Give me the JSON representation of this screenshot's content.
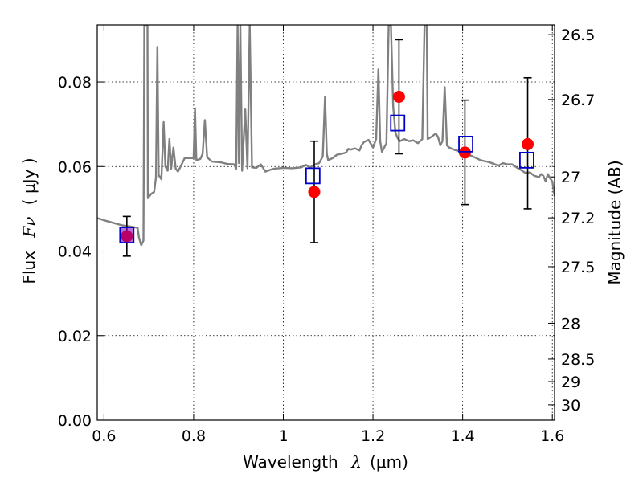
{
  "chart_data": {
    "type": "scatter",
    "xlabel": "Wavelength",
    "xlabel_symbol": "λ",
    "xlabel_unit": "(μm)",
    "ylabel": "Flux",
    "ylabel_symbol": "Fν",
    "ylabel_unit": "( μJy )",
    "y2label": "Magnitude (AB)",
    "xlim": [
      0.585,
      1.605
    ],
    "ylim": [
      0.0,
      0.0935
    ],
    "xticks": [
      0.6,
      0.8,
      1.0,
      1.2,
      1.4,
      1.6
    ],
    "xtick_labels": [
      "0.6",
      "0.8",
      "1",
      "1.2",
      "1.4",
      "1.6"
    ],
    "yticks": [
      0.0,
      0.02,
      0.04,
      0.06,
      0.08
    ],
    "ytick_labels": [
      "0.00",
      "0.02",
      "0.04",
      "0.06",
      "0.08"
    ],
    "y2ticks": [
      26.5,
      26.7,
      27.0,
      27.2,
      27.5,
      28.0,
      28.5,
      29.0,
      30.0
    ],
    "y2tick_labels": [
      "26.5",
      "26.7",
      "27",
      "27.2",
      "27.5",
      "28",
      "28.5",
      "29",
      "30"
    ],
    "grid": true,
    "series": [
      {
        "kind": "spectrum",
        "color": "#808080",
        "points": [
          [
            0.585,
            0.0478
          ],
          [
            0.6,
            0.0473
          ],
          [
            0.62,
            0.0467
          ],
          [
            0.64,
            0.0461
          ],
          [
            0.66,
            0.0458
          ],
          [
            0.675,
            0.0455
          ],
          [
            0.678,
            0.0432
          ],
          [
            0.683,
            0.0414
          ],
          [
            0.688,
            0.0425
          ],
          [
            0.69,
            0.0935
          ],
          [
            0.693,
            0.0935
          ],
          [
            0.697,
            0.0935
          ],
          [
            0.698,
            0.0525
          ],
          [
            0.705,
            0.0535
          ],
          [
            0.712,
            0.054
          ],
          [
            0.716,
            0.0575
          ],
          [
            0.719,
            0.0883
          ],
          [
            0.722,
            0.058
          ],
          [
            0.728,
            0.057
          ],
          [
            0.733,
            0.0705
          ],
          [
            0.737,
            0.06
          ],
          [
            0.742,
            0.059
          ],
          [
            0.746,
            0.0665
          ],
          [
            0.75,
            0.0595
          ],
          [
            0.755,
            0.0645
          ],
          [
            0.76,
            0.0595
          ],
          [
            0.765,
            0.0588
          ],
          [
            0.77,
            0.0598
          ],
          [
            0.78,
            0.062
          ],
          [
            0.79,
            0.062
          ],
          [
            0.8,
            0.062
          ],
          [
            0.803,
            0.0738
          ],
          [
            0.806,
            0.0615
          ],
          [
            0.815,
            0.0618
          ],
          [
            0.82,
            0.063
          ],
          [
            0.825,
            0.071
          ],
          [
            0.83,
            0.0622
          ],
          [
            0.84,
            0.0612
          ],
          [
            0.86,
            0.061
          ],
          [
            0.875,
            0.0606
          ],
          [
            0.89,
            0.0605
          ],
          [
            0.895,
            0.0595
          ],
          [
            0.898,
            0.0935
          ],
          [
            0.901,
            0.0608
          ],
          [
            0.904,
            0.0935
          ],
          [
            0.908,
            0.059
          ],
          [
            0.915,
            0.0735
          ],
          [
            0.92,
            0.0596
          ],
          [
            0.925,
            0.0935
          ],
          [
            0.93,
            0.0598
          ],
          [
            0.94,
            0.0597
          ],
          [
            0.95,
            0.0605
          ],
          [
            0.96,
            0.0588
          ],
          [
            0.97,
            0.0592
          ],
          [
            0.98,
            0.0595
          ],
          [
            1.0,
            0.0597
          ],
          [
            1.02,
            0.0596
          ],
          [
            1.04,
            0.0598
          ],
          [
            1.05,
            0.0604
          ],
          [
            1.06,
            0.0598
          ],
          [
            1.07,
            0.0605
          ],
          [
            1.08,
            0.0608
          ],
          [
            1.088,
            0.0624
          ],
          [
            1.093,
            0.0765
          ],
          [
            1.097,
            0.063
          ],
          [
            1.1,
            0.0615
          ],
          [
            1.11,
            0.062
          ],
          [
            1.12,
            0.0628
          ],
          [
            1.13,
            0.063
          ],
          [
            1.14,
            0.0633
          ],
          [
            1.145,
            0.0642
          ],
          [
            1.15,
            0.064
          ],
          [
            1.16,
            0.0643
          ],
          [
            1.17,
            0.0638
          ],
          [
            1.175,
            0.0651
          ],
          [
            1.18,
            0.0658
          ],
          [
            1.19,
            0.0663
          ],
          [
            1.2,
            0.0645
          ],
          [
            1.207,
            0.0665
          ],
          [
            1.212,
            0.083
          ],
          [
            1.216,
            0.066
          ],
          [
            1.22,
            0.0635
          ],
          [
            1.23,
            0.0655
          ],
          [
            1.235,
            0.0935
          ],
          [
            1.238,
            0.0935
          ],
          [
            1.24,
            0.0935
          ],
          [
            1.245,
            0.0742
          ],
          [
            1.25,
            0.068
          ],
          [
            1.255,
            0.0667
          ],
          [
            1.26,
            0.066
          ],
          [
            1.27,
            0.0665
          ],
          [
            1.28,
            0.066
          ],
          [
            1.29,
            0.0662
          ],
          [
            1.3,
            0.0655
          ],
          [
            1.31,
            0.0665
          ],
          [
            1.315,
            0.0935
          ],
          [
            1.32,
            0.0935
          ],
          [
            1.322,
            0.0665
          ],
          [
            1.33,
            0.067
          ],
          [
            1.34,
            0.0678
          ],
          [
            1.345,
            0.067
          ],
          [
            1.35,
            0.065
          ],
          [
            1.355,
            0.066
          ],
          [
            1.36,
            0.0788
          ],
          [
            1.365,
            0.065
          ],
          [
            1.37,
            0.0645
          ],
          [
            1.38,
            0.064
          ],
          [
            1.39,
            0.0637
          ],
          [
            1.4,
            0.0632
          ],
          [
            1.42,
            0.0625
          ],
          [
            1.44,
            0.0615
          ],
          [
            1.46,
            0.061
          ],
          [
            1.48,
            0.0602
          ],
          [
            1.49,
            0.0608
          ],
          [
            1.5,
            0.0605
          ],
          [
            1.51,
            0.0605
          ],
          [
            1.52,
            0.0598
          ],
          [
            1.53,
            0.0592
          ],
          [
            1.54,
            0.0585
          ],
          [
            1.55,
            0.0586
          ],
          [
            1.56,
            0.0578
          ],
          [
            1.57,
            0.0575
          ],
          [
            1.575,
            0.0582
          ],
          [
            1.58,
            0.0578
          ],
          [
            1.585,
            0.0565
          ],
          [
            1.59,
            0.0582
          ],
          [
            1.595,
            0.0572
          ],
          [
            1.6,
            0.0565
          ],
          [
            1.605,
            0.053
          ]
        ]
      },
      {
        "kind": "observed",
        "color": "#ff0000",
        "marker": "circle",
        "points": [
          {
            "x": 0.651,
            "y": 0.0435,
            "yerr": [
              0.0388,
              0.0482
            ]
          },
          {
            "x": 1.069,
            "y": 0.054,
            "yerr": [
              0.042,
              0.066
            ]
          },
          {
            "x": 1.258,
            "y": 0.0765,
            "yerr": [
              0.063,
              0.09
            ]
          },
          {
            "x": 1.405,
            "y": 0.0633,
            "yerr": [
              0.051,
              0.0757
            ]
          },
          {
            "x": 1.545,
            "y": 0.0653,
            "yerr": [
              0.05,
              0.081
            ]
          }
        ]
      },
      {
        "kind": "model-photometry",
        "color": "#0000cc",
        "marker": "open-square",
        "points": [
          {
            "x": 0.651,
            "y": 0.0438
          },
          {
            "x": 1.066,
            "y": 0.0578
          },
          {
            "x": 1.255,
            "y": 0.0703
          },
          {
            "x": 1.407,
            "y": 0.0653
          },
          {
            "x": 1.543,
            "y": 0.0615
          }
        ]
      }
    ]
  }
}
